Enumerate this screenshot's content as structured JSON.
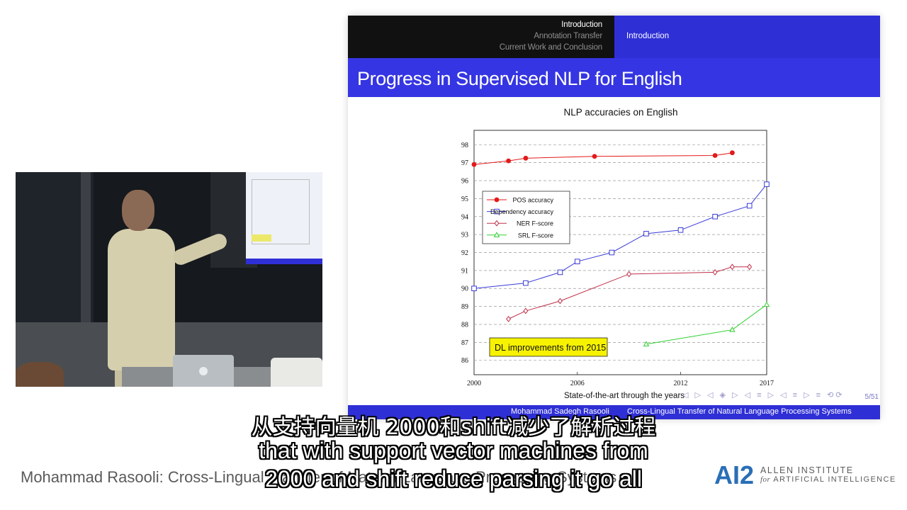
{
  "slide": {
    "nav_items": [
      "Introduction",
      "Annotation Transfer",
      "Current Work and Conclusion"
    ],
    "nav_section": "Introduction",
    "title": "Progress in Supervised NLP for English",
    "xlabel_note": "State-of-the-art through the years",
    "page": "5/51",
    "footer_author": "Mohammad Sadegh Rasooli",
    "footer_title": "Cross-Lingual Transfer of Natural Language Processing Systems",
    "colors": {
      "header_dark": "#111111",
      "header_blue": "#2f2fd6",
      "title_blue": "#3535e3"
    }
  },
  "chart_data": {
    "type": "line",
    "title": "NLP accuracies on English",
    "xlabel": "",
    "ylabel": "",
    "xlim": [
      2000,
      2017
    ],
    "ylim": [
      85.2,
      98.8
    ],
    "x_ticks": [
      "2000",
      "2006",
      "2012",
      "2017"
    ],
    "y_ticks": [
      "86",
      "87",
      "88",
      "89",
      "90",
      "91",
      "92",
      "93",
      "94",
      "95",
      "96",
      "97",
      "98"
    ],
    "grid": "horizontal dashed",
    "legend_position": "upper-left",
    "annotation": "DL improvements from 2015",
    "series": [
      {
        "name": "POS accuracy",
        "color": "#e41a1a",
        "marker": "filled-circle",
        "x": [
          2000,
          2002,
          2003,
          2007,
          2014,
          2015
        ],
        "y": [
          96.9,
          97.1,
          97.25,
          97.35,
          97.4,
          97.55
        ]
      },
      {
        "name": "Dependency accuracy",
        "color": "#3b3bd8",
        "marker": "square",
        "x": [
          2000,
          2003,
          2005,
          2006,
          2008,
          2010,
          2012,
          2014,
          2016,
          2017
        ],
        "y": [
          90.0,
          90.3,
          90.9,
          91.5,
          92.0,
          93.05,
          93.25,
          94.0,
          94.6,
          95.8
        ]
      },
      {
        "name": "NER F-score",
        "color": "#c0304a",
        "marker": "diamond",
        "x": [
          2002,
          2003,
          2005,
          2009,
          2014,
          2015,
          2016
        ],
        "y": [
          88.3,
          88.75,
          89.3,
          90.8,
          90.9,
          91.2,
          91.2
        ]
      },
      {
        "name": "SRL F-score",
        "color": "#30d030",
        "marker": "triangle",
        "x": [
          2010,
          2015,
          2017
        ],
        "y": [
          86.9,
          87.7,
          89.1
        ]
      }
    ]
  },
  "captions": {
    "zh": "从支持向量机 2000和shift减少了解析过程",
    "en_line1": "that with support vector machines from",
    "en_line2": "2000 and shift reduce parsing it go all"
  },
  "talk_title": "Mohammad Rasooli: Cross-Lingual Transfer of Natural Language Processing Systems",
  "brand": {
    "logo_text": "AI2",
    "line1": "ALLEN INSTITUTE",
    "line2_prefix": "for",
    "line2_rest": "ARTIFICIAL INTELLIGENCE",
    "logo_colors": {
      "blue": "#2a6fb6",
      "teal": "#39a0c8"
    }
  }
}
